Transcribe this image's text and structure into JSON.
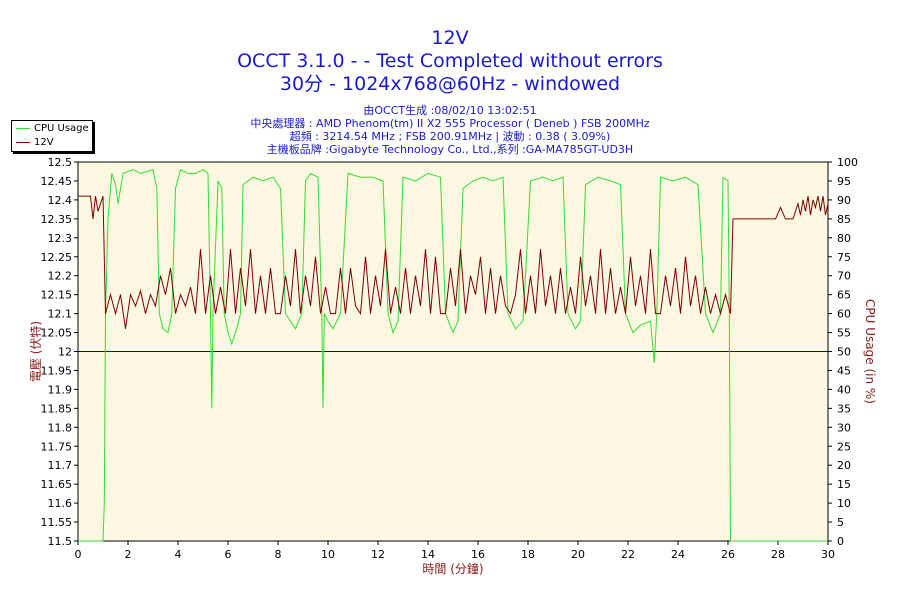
{
  "header": {
    "title": "12V",
    "line2": "OCCT 3.1.0 -  - Test Completed without errors",
    "line3": "30分 - 1024x768@60Hz - windowed",
    "info": [
      "由OCCT生成 :08/02/10 13:02:51",
      "中央處理器 : AMD Phenom(tm) II X2 555 Processor ( Deneb ) FSB 200MHz",
      "超頻 : 3214.54 MHz ; FSB 200.91MHz | 波動 : 0.38 ( 3.09%)",
      "主機板品牌 :Gigabyte Technology Co., Ltd.,系列 :GA-MA785GT-UD3H"
    ]
  },
  "legend": [
    {
      "name": "CPU Usage",
      "color": "#33dd33"
    },
    {
      "name": "12V",
      "color": "#800000"
    }
  ],
  "chart_data": {
    "type": "line",
    "xlabel": "時間 (分鐘)",
    "ylabel_left": "電壓 (伏特)",
    "ylabel_right": "CPU Usage (in %)",
    "xlim": [
      0,
      30
    ],
    "ylim_left": [
      11.5,
      12.5
    ],
    "ylim_right": [
      0,
      100
    ],
    "x_ticks": [
      "0",
      "2",
      "4",
      "6",
      "8",
      "10",
      "12",
      "14",
      "16",
      "18",
      "20",
      "22",
      "24",
      "26",
      "28",
      "30"
    ],
    "y_left_ticks": [
      "11.5",
      "11.55",
      "11.6",
      "11.65",
      "11.7",
      "11.75",
      "11.8",
      "11.85",
      "11.9",
      "11.95",
      "12",
      "12.05",
      "12.1",
      "12.15",
      "12.2",
      "12.25",
      "12.3",
      "12.35",
      "12.4",
      "12.45",
      "12.5"
    ],
    "y_right_ticks": [
      "0",
      "5",
      "10",
      "15",
      "20",
      "25",
      "30",
      "35",
      "40",
      "45",
      "50",
      "55",
      "60",
      "65",
      "70",
      "75",
      "80",
      "85",
      "90",
      "95",
      "100"
    ],
    "reference_line": {
      "axis": "left",
      "value": 12.0,
      "color": "#0000cc"
    },
    "grid": false,
    "background": "#fdf8e1",
    "series": [
      {
        "name": "CPU Usage",
        "axis": "right",
        "color": "#33dd33",
        "points": [
          [
            0,
            0
          ],
          [
            1.0,
            0
          ],
          [
            1.05,
            10
          ],
          [
            1.1,
            60
          ],
          [
            1.2,
            85
          ],
          [
            1.35,
            97
          ],
          [
            1.5,
            94
          ],
          [
            1.6,
            89
          ],
          [
            1.8,
            97
          ],
          [
            2.2,
            98
          ],
          [
            2.5,
            97
          ],
          [
            3.0,
            98
          ],
          [
            3.15,
            93
          ],
          [
            3.25,
            60
          ],
          [
            3.4,
            56
          ],
          [
            3.6,
            55
          ],
          [
            3.75,
            60
          ],
          [
            3.9,
            93
          ],
          [
            4.1,
            98
          ],
          [
            4.4,
            97
          ],
          [
            4.7,
            97
          ],
          [
            5.0,
            98
          ],
          [
            5.2,
            97
          ],
          [
            5.3,
            60
          ],
          [
            5.35,
            35
          ],
          [
            5.4,
            60
          ],
          [
            5.6,
            95
          ],
          [
            5.75,
            93
          ],
          [
            5.85,
            60
          ],
          [
            6.0,
            55
          ],
          [
            6.15,
            52
          ],
          [
            6.35,
            56
          ],
          [
            6.5,
            60
          ],
          [
            6.6,
            94
          ],
          [
            7.0,
            96
          ],
          [
            7.4,
            95
          ],
          [
            7.8,
            96
          ],
          [
            8.1,
            93
          ],
          [
            8.3,
            60
          ],
          [
            8.7,
            56
          ],
          [
            8.95,
            60
          ],
          [
            9.1,
            95
          ],
          [
            9.3,
            97
          ],
          [
            9.6,
            96
          ],
          [
            9.75,
            60
          ],
          [
            9.8,
            35
          ],
          [
            9.85,
            60
          ],
          [
            10.0,
            58
          ],
          [
            10.2,
            56
          ],
          [
            10.5,
            60
          ],
          [
            10.8,
            97
          ],
          [
            11.3,
            96
          ],
          [
            11.8,
            96
          ],
          [
            12.2,
            95
          ],
          [
            12.4,
            60
          ],
          [
            12.6,
            55
          ],
          [
            12.8,
            58
          ],
          [
            13.0,
            96
          ],
          [
            13.5,
            95
          ],
          [
            14.0,
            97
          ],
          [
            14.5,
            96
          ],
          [
            14.7,
            60
          ],
          [
            15.0,
            55
          ],
          [
            15.2,
            58
          ],
          [
            15.4,
            93
          ],
          [
            15.8,
            95
          ],
          [
            16.2,
            96
          ],
          [
            16.6,
            95
          ],
          [
            17.0,
            96
          ],
          [
            17.2,
            60
          ],
          [
            17.5,
            56
          ],
          [
            17.8,
            58
          ],
          [
            18.1,
            95
          ],
          [
            18.6,
            96
          ],
          [
            19.0,
            95
          ],
          [
            19.4,
            96
          ],
          [
            19.6,
            60
          ],
          [
            19.9,
            56
          ],
          [
            20.1,
            58
          ],
          [
            20.3,
            94
          ],
          [
            20.8,
            96
          ],
          [
            21.3,
            95
          ],
          [
            21.7,
            94
          ],
          [
            21.9,
            60
          ],
          [
            22.2,
            55
          ],
          [
            22.5,
            57
          ],
          [
            22.9,
            58
          ],
          [
            23.05,
            47
          ],
          [
            23.15,
            60
          ],
          [
            23.3,
            96
          ],
          [
            23.8,
            95
          ],
          [
            24.3,
            96
          ],
          [
            24.8,
            94
          ],
          [
            25.1,
            60
          ],
          [
            25.4,
            55
          ],
          [
            25.7,
            60
          ],
          [
            25.8,
            96
          ],
          [
            26.0,
            95
          ],
          [
            26.05,
            60
          ],
          [
            26.1,
            0
          ],
          [
            30,
            0
          ]
        ]
      },
      {
        "name": "12V",
        "axis": "left",
        "color": "#800000",
        "points": [
          [
            0,
            12.41
          ],
          [
            0.5,
            12.41
          ],
          [
            0.6,
            12.35
          ],
          [
            0.7,
            12.41
          ],
          [
            0.8,
            12.37
          ],
          [
            1.0,
            12.41
          ],
          [
            1.1,
            12.1
          ],
          [
            1.3,
            12.15
          ],
          [
            1.5,
            12.1
          ],
          [
            1.7,
            12.15
          ],
          [
            1.9,
            12.06
          ],
          [
            2.1,
            12.15
          ],
          [
            2.3,
            12.12
          ],
          [
            2.5,
            12.16
          ],
          [
            2.7,
            12.1
          ],
          [
            2.9,
            12.15
          ],
          [
            3.1,
            12.12
          ],
          [
            3.3,
            12.2
          ],
          [
            3.5,
            12.15
          ],
          [
            3.7,
            12.22
          ],
          [
            3.9,
            12.1
          ],
          [
            4.1,
            12.15
          ],
          [
            4.3,
            12.12
          ],
          [
            4.5,
            12.17
          ],
          [
            4.7,
            12.1
          ],
          [
            4.9,
            12.27
          ],
          [
            5.1,
            12.1
          ],
          [
            5.3,
            12.2
          ],
          [
            5.5,
            12.1
          ],
          [
            5.7,
            12.17
          ],
          [
            5.9,
            12.1
          ],
          [
            6.1,
            12.27
          ],
          [
            6.3,
            12.1
          ],
          [
            6.5,
            12.22
          ],
          [
            6.7,
            12.12
          ],
          [
            6.9,
            12.27
          ],
          [
            7.1,
            12.1
          ],
          [
            7.3,
            12.2
          ],
          [
            7.5,
            12.1
          ],
          [
            7.7,
            12.22
          ],
          [
            7.9,
            12.1
          ],
          [
            8.1,
            12.1
          ],
          [
            8.3,
            12.2
          ],
          [
            8.5,
            12.12
          ],
          [
            8.7,
            12.27
          ],
          [
            8.9,
            12.1
          ],
          [
            9.1,
            12.2
          ],
          [
            9.3,
            12.12
          ],
          [
            9.5,
            12.25
          ],
          [
            9.7,
            12.1
          ],
          [
            9.9,
            12.17
          ],
          [
            10.1,
            12.1
          ],
          [
            10.3,
            12.1
          ],
          [
            10.5,
            12.22
          ],
          [
            10.7,
            12.1
          ],
          [
            10.9,
            12.22
          ],
          [
            11.1,
            12.12
          ],
          [
            11.3,
            12.1
          ],
          [
            11.5,
            12.25
          ],
          [
            11.7,
            12.1
          ],
          [
            11.9,
            12.2
          ],
          [
            12.1,
            12.12
          ],
          [
            12.3,
            12.27
          ],
          [
            12.5,
            12.1
          ],
          [
            12.7,
            12.17
          ],
          [
            12.9,
            12.1
          ],
          [
            13.1,
            12.22
          ],
          [
            13.3,
            12.1
          ],
          [
            13.5,
            12.2
          ],
          [
            13.7,
            12.12
          ],
          [
            13.9,
            12.27
          ],
          [
            14.1,
            12.1
          ],
          [
            14.3,
            12.25
          ],
          [
            14.5,
            12.1
          ],
          [
            14.7,
            12.1
          ],
          [
            14.9,
            12.22
          ],
          [
            15.1,
            12.12
          ],
          [
            15.3,
            12.27
          ],
          [
            15.5,
            12.1
          ],
          [
            15.7,
            12.2
          ],
          [
            15.9,
            12.15
          ],
          [
            16.1,
            12.25
          ],
          [
            16.3,
            12.1
          ],
          [
            16.5,
            12.22
          ],
          [
            16.7,
            12.1
          ],
          [
            16.9,
            12.2
          ],
          [
            17.1,
            12.12
          ],
          [
            17.3,
            12.1
          ],
          [
            17.5,
            12.15
          ],
          [
            17.7,
            12.27
          ],
          [
            17.9,
            12.1
          ],
          [
            18.1,
            12.2
          ],
          [
            18.3,
            12.1
          ],
          [
            18.5,
            12.27
          ],
          [
            18.7,
            12.12
          ],
          [
            18.9,
            12.2
          ],
          [
            19.1,
            12.1
          ],
          [
            19.3,
            12.22
          ],
          [
            19.5,
            12.1
          ],
          [
            19.7,
            12.17
          ],
          [
            19.9,
            12.1
          ],
          [
            20.1,
            12.25
          ],
          [
            20.3,
            12.12
          ],
          [
            20.5,
            12.2
          ],
          [
            20.7,
            12.1
          ],
          [
            20.9,
            12.27
          ],
          [
            21.1,
            12.1
          ],
          [
            21.3,
            12.22
          ],
          [
            21.5,
            12.1
          ],
          [
            21.7,
            12.17
          ],
          [
            21.9,
            12.1
          ],
          [
            22.1,
            12.25
          ],
          [
            22.3,
            12.12
          ],
          [
            22.5,
            12.2
          ],
          [
            22.7,
            12.1
          ],
          [
            22.9,
            12.27
          ],
          [
            23.1,
            12.1
          ],
          [
            23.3,
            12.1
          ],
          [
            23.5,
            12.2
          ],
          [
            23.7,
            12.12
          ],
          [
            23.9,
            12.22
          ],
          [
            24.1,
            12.1
          ],
          [
            24.3,
            12.25
          ],
          [
            24.5,
            12.12
          ],
          [
            24.7,
            12.2
          ],
          [
            24.9,
            12.1
          ],
          [
            25.1,
            12.17
          ],
          [
            25.3,
            12.1
          ],
          [
            25.5,
            12.15
          ],
          [
            25.7,
            12.1
          ],
          [
            25.9,
            12.15
          ],
          [
            26.1,
            12.1
          ],
          [
            26.2,
            12.35
          ],
          [
            27.0,
            12.35
          ],
          [
            27.5,
            12.35
          ],
          [
            27.9,
            12.35
          ],
          [
            28.1,
            12.38
          ],
          [
            28.3,
            12.35
          ],
          [
            28.6,
            12.35
          ],
          [
            28.8,
            12.39
          ],
          [
            28.9,
            12.36
          ],
          [
            29.0,
            12.4
          ],
          [
            29.1,
            12.37
          ],
          [
            29.2,
            12.41
          ],
          [
            29.3,
            12.36
          ],
          [
            29.4,
            12.4
          ],
          [
            29.5,
            12.38
          ],
          [
            29.6,
            12.41
          ],
          [
            29.7,
            12.37
          ],
          [
            29.8,
            12.41
          ],
          [
            29.9,
            12.36
          ],
          [
            30,
            12.39
          ]
        ]
      }
    ]
  }
}
